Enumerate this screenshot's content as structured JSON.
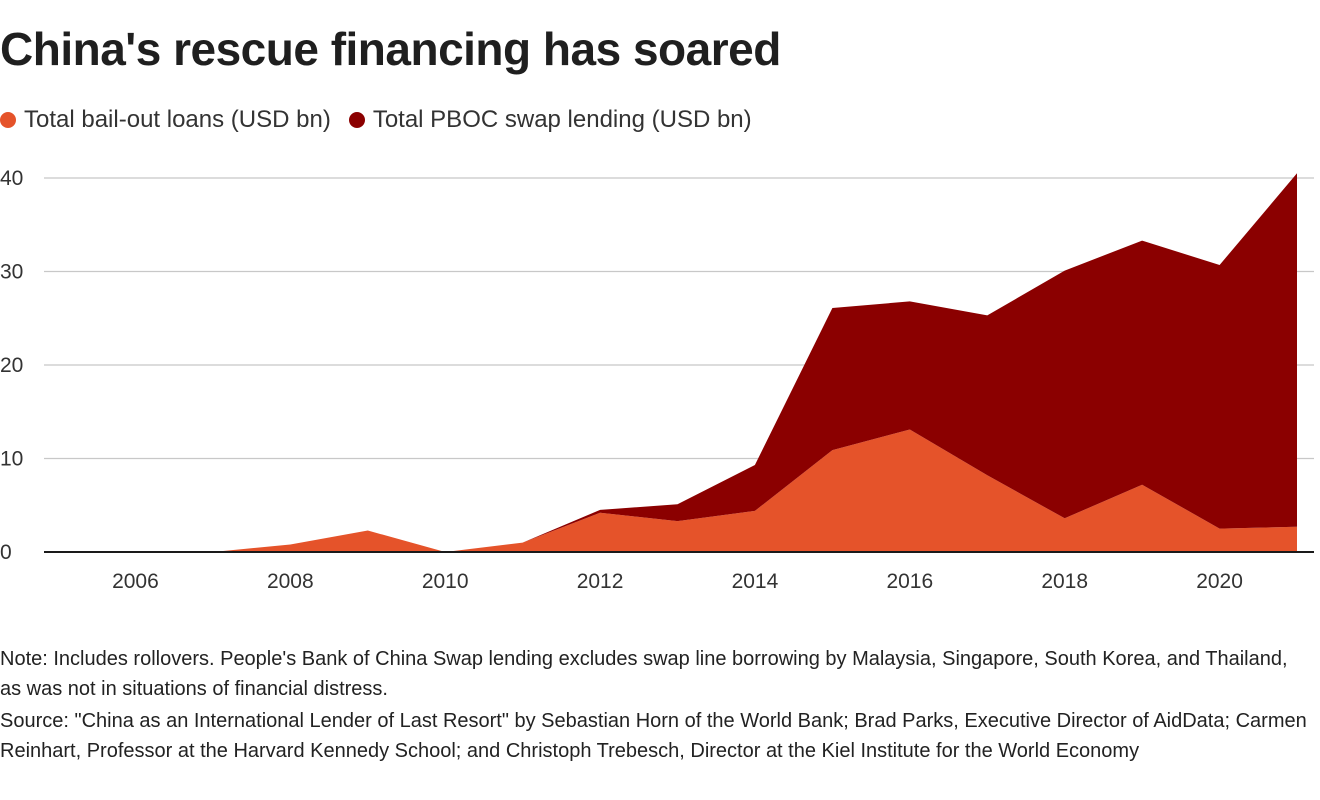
{
  "title": "China's rescue financing has soared",
  "legend": [
    {
      "label": "Total bail-out loans (USD bn)",
      "color": "#e5532a"
    },
    {
      "label": "Total PBOC swap lending (USD bn)",
      "color": "#8b0000"
    }
  ],
  "note": "Note: Includes rollovers. People's Bank of China Swap lending excludes swap line borrowing by Malaysia, Singapore, South Korea, and Thailand, as was not in situations of financial distress.",
  "source": "Source: \"China as an International Lender of Last Resort\" by Sebastian Horn of the World Bank; Brad Parks, Executive Director of AidData; Carmen Reinhart, Professor at the Harvard Kennedy School; and Christoph Trebesch, Director at the Kiel Institute for the World Economy",
  "chart_data": {
    "type": "area",
    "stacked": true,
    "x": [
      2005,
      2006,
      2007,
      2008,
      2009,
      2010,
      2011,
      2012,
      2013,
      2014,
      2015,
      2016,
      2017,
      2018,
      2019,
      2020,
      2021
    ],
    "series": [
      {
        "name": "Total bail-out loans (USD bn)",
        "color": "#e5532a",
        "values": [
          0,
          0,
          0,
          0.8,
          2.3,
          0,
          1.0,
          4.2,
          3.3,
          4.4,
          10.9,
          13.1,
          8.2,
          3.6,
          7.2,
          2.5,
          2.7
        ]
      },
      {
        "name": "Total PBOC swap lending (USD bn)",
        "color": "#8b0000",
        "values": [
          0,
          0,
          0,
          0,
          0,
          0,
          0,
          0.3,
          1.8,
          4.9,
          15.2,
          13.7,
          17.1,
          26.5,
          26.1,
          28.2,
          37.8
        ]
      }
    ],
    "xticks": [
      "2006",
      "2008",
      "2010",
      "2012",
      "2014",
      "2016",
      "2018",
      "2020"
    ],
    "yticks": [
      "0",
      "10",
      "20",
      "30",
      "40"
    ],
    "ylim": [
      0,
      40
    ],
    "xlim": [
      2005,
      2021
    ],
    "grid": "horizontal",
    "legend_position": "top-left"
  }
}
